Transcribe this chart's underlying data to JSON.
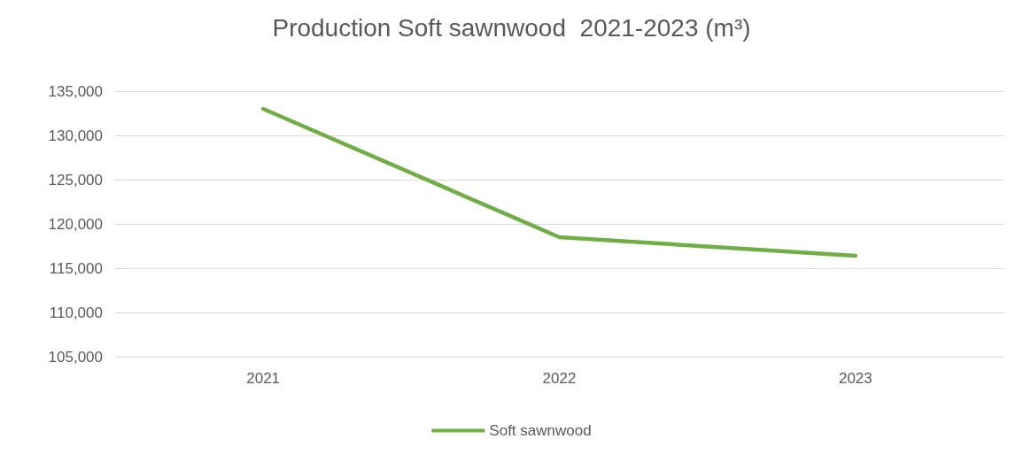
{
  "chart_data": {
    "type": "line",
    "title": "Production Soft sawnwood  2021-2023 (m³)",
    "categories": [
      "2021",
      "2022",
      "2023"
    ],
    "series": [
      {
        "name": "Soft sawnwood",
        "color": "#70ad47",
        "values": [
          133000,
          118500,
          116400
        ]
      }
    ],
    "ylim": [
      105000,
      135000
    ],
    "yticks": [
      {
        "value": 105000,
        "label": "105,000"
      },
      {
        "value": 110000,
        "label": "110,000"
      },
      {
        "value": 115000,
        "label": "115,000"
      },
      {
        "value": 120000,
        "label": "120,000"
      },
      {
        "value": 125000,
        "label": "125,000"
      },
      {
        "value": 130000,
        "label": "130,000"
      },
      {
        "value": 135000,
        "label": "135,000"
      }
    ],
    "grid": "y",
    "legend": "bottom",
    "marker": "none",
    "line_style": "solid"
  }
}
